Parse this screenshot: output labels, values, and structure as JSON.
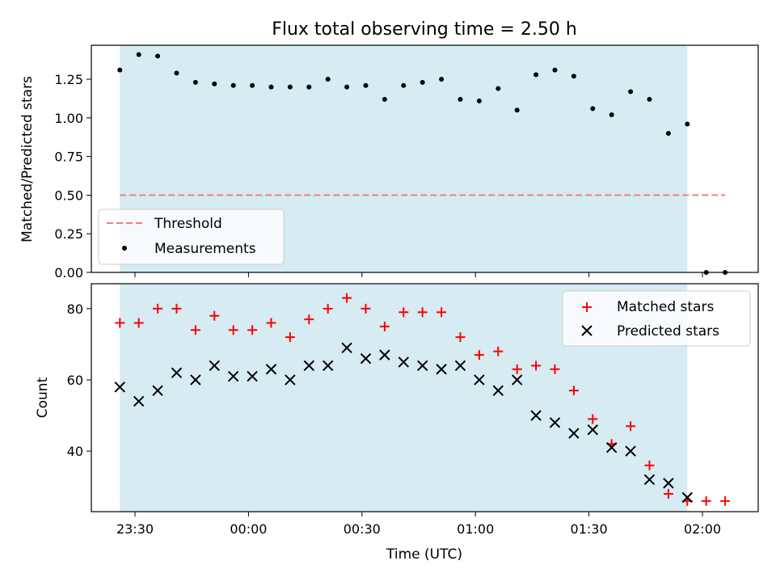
{
  "chart_data": [
    {
      "type": "scatter",
      "title": "Flux total observing time = 2.50 h",
      "xlabel": "",
      "ylabel": "Matched/Predicted stars",
      "ylim": [
        0,
        1.47
      ],
      "yticks": [
        "0.00",
        "0.25",
        "0.50",
        "0.75",
        "1.00",
        "1.25"
      ],
      "xticks": [],
      "shaded_region": {
        "x_start": "23:26",
        "x_end": "01:56",
        "color": "#add8e6"
      },
      "threshold": {
        "name": "Threshold",
        "value": 0.5,
        "color": "#f08080",
        "style": "dashed"
      },
      "legend": {
        "position": "lower-left",
        "entries": [
          "Threshold",
          "Measurements"
        ]
      },
      "series": [
        {
          "name": "Measurements",
          "color": "#000000",
          "marker": "dot",
          "x": [
            "23:26",
            "23:31",
            "23:36",
            "23:41",
            "23:46",
            "23:51",
            "23:56",
            "00:01",
            "00:06",
            "00:11",
            "00:16",
            "00:21",
            "00:26",
            "00:31",
            "00:36",
            "00:41",
            "00:46",
            "00:51",
            "00:56",
            "01:01",
            "01:06",
            "01:11",
            "01:16",
            "01:21",
            "01:26",
            "01:31",
            "01:36",
            "01:41",
            "01:46",
            "01:51",
            "01:56",
            "02:01",
            "02:06"
          ],
          "values": [
            1.31,
            1.41,
            1.4,
            1.29,
            1.23,
            1.22,
            1.21,
            1.21,
            1.2,
            1.2,
            1.2,
            1.25,
            1.2,
            1.21,
            1.12,
            1.21,
            1.23,
            1.25,
            1.12,
            1.11,
            1.19,
            1.05,
            1.28,
            1.31,
            1.27,
            1.06,
            1.02,
            1.17,
            1.12,
            0.9,
            0.96,
            0.0,
            0.0
          ]
        }
      ]
    },
    {
      "type": "scatter",
      "title": "",
      "xlabel": "Time (UTC)",
      "ylabel": "Count",
      "ylim": [
        23,
        87
      ],
      "yticks": [
        "40",
        "60",
        "80"
      ],
      "xticks": [
        "23:30",
        "00:00",
        "00:30",
        "01:00",
        "01:30",
        "02:00"
      ],
      "shaded_region": {
        "x_start": "23:26",
        "x_end": "01:56",
        "color": "#add8e6"
      },
      "legend": {
        "position": "top-right",
        "entries": [
          "Matched stars",
          "Predicted stars"
        ]
      },
      "series": [
        {
          "name": "Matched stars",
          "color": "#ff0000",
          "marker": "plus",
          "x": [
            "23:26",
            "23:31",
            "23:36",
            "23:41",
            "23:46",
            "23:51",
            "23:56",
            "00:01",
            "00:06",
            "00:11",
            "00:16",
            "00:21",
            "00:26",
            "00:31",
            "00:36",
            "00:41",
            "00:46",
            "00:51",
            "00:56",
            "01:01",
            "01:06",
            "01:11",
            "01:16",
            "01:21",
            "01:26",
            "01:31",
            "01:36",
            "01:41",
            "01:46",
            "01:51",
            "01:56",
            "02:01",
            "02:06"
          ],
          "values": [
            76,
            76,
            80,
            80,
            74,
            78,
            74,
            74,
            76,
            72,
            77,
            80,
            83,
            80,
            75,
            79,
            79,
            79,
            72,
            67,
            68,
            63,
            64,
            63,
            57,
            49,
            42,
            47,
            36,
            28,
            26,
            26,
            26
          ]
        },
        {
          "name": "Predicted stars",
          "color": "#000000",
          "marker": "x",
          "x": [
            "23:26",
            "23:31",
            "23:36",
            "23:41",
            "23:46",
            "23:51",
            "23:56",
            "00:01",
            "00:06",
            "00:11",
            "00:16",
            "00:21",
            "00:26",
            "00:31",
            "00:36",
            "00:41",
            "00:46",
            "00:51",
            "00:56",
            "01:01",
            "01:06",
            "01:11",
            "01:16",
            "01:21",
            "01:26",
            "01:31",
            "01:36",
            "01:41",
            "01:46",
            "01:51",
            "01:56"
          ],
          "values": [
            58,
            54,
            57,
            62,
            60,
            64,
            61,
            61,
            63,
            60,
            64,
            64,
            69,
            66,
            67,
            65,
            64,
            63,
            64,
            60,
            57,
            60,
            50,
            48,
            45,
            46,
            41,
            40,
            32,
            31,
            27
          ]
        }
      ]
    }
  ]
}
